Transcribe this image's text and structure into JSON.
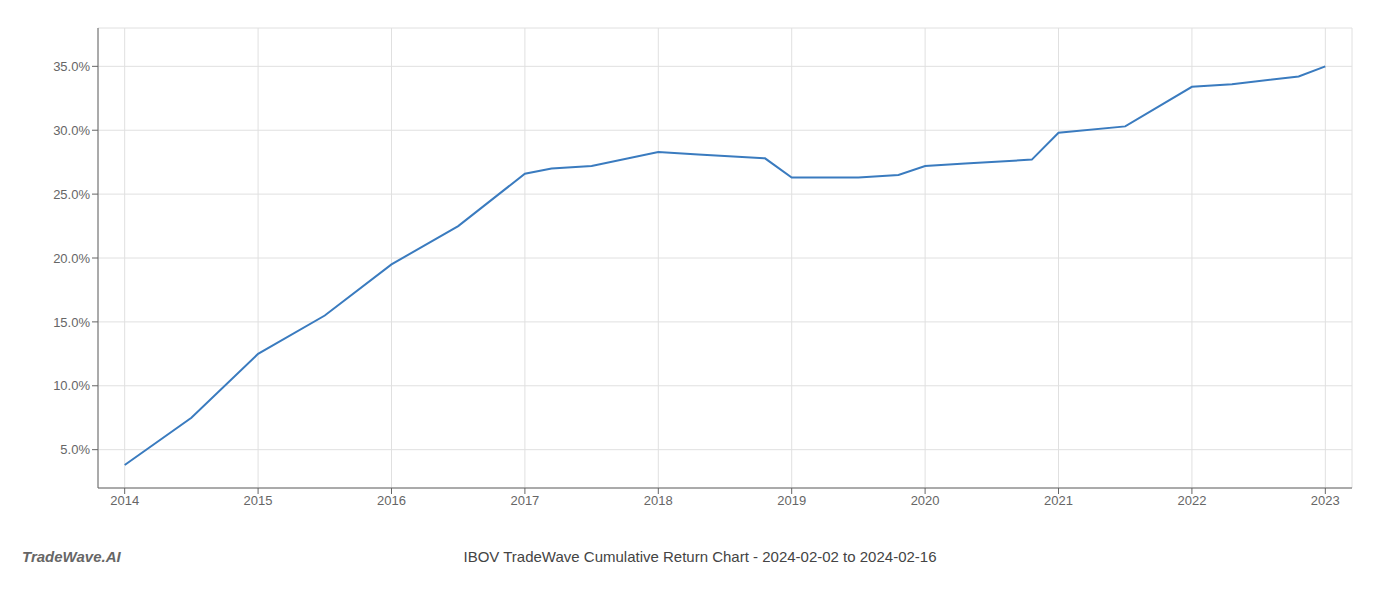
{
  "chart_data": {
    "type": "line",
    "title": "IBOV TradeWave Cumulative Return Chart - 2024-02-02 to 2024-02-16",
    "annotations": [
      "TradeWave.AI"
    ],
    "x": [
      2014,
      2014.5,
      2015,
      2015.5,
      2016,
      2016.5,
      2017,
      2017.2,
      2017.5,
      2018,
      2018.3,
      2018.8,
      2019,
      2019.5,
      2019.8,
      2020,
      2020.3,
      2020.8,
      2021,
      2021.5,
      2022,
      2022.3,
      2022.8,
      2023
    ],
    "values": [
      0.038,
      0.075,
      0.125,
      0.155,
      0.195,
      0.225,
      0.266,
      0.27,
      0.272,
      0.283,
      0.281,
      0.278,
      0.263,
      0.263,
      0.265,
      0.272,
      0.274,
      0.277,
      0.298,
      0.303,
      0.334,
      0.336,
      0.342,
      0.35
    ],
    "color": "#3a7bbf",
    "xlim": [
      2013.8,
      2023.2
    ],
    "ylim": [
      0.02,
      0.38
    ],
    "xticks": [
      2014,
      2015,
      2016,
      2017,
      2018,
      2019,
      2020,
      2021,
      2022,
      2023
    ],
    "yticks": [
      {
        "value": 0.05,
        "label": "5.0%"
      },
      {
        "value": 0.1,
        "label": "10.0%"
      },
      {
        "value": 0.15,
        "label": "15.0%"
      },
      {
        "value": 0.2,
        "label": "20.0%"
      },
      {
        "value": 0.25,
        "label": "25.0%"
      },
      {
        "value": 0.3,
        "label": "30.0%"
      },
      {
        "value": 0.35,
        "label": "35.0%"
      }
    ],
    "grid": true
  }
}
